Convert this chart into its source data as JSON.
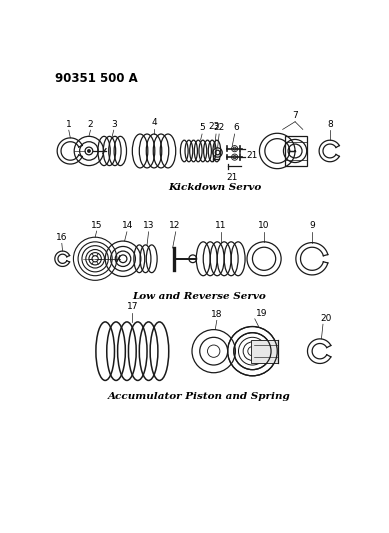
{
  "part_number": "90351 500 A",
  "bg_color": "#ffffff",
  "line_color": "#1a1a1a",
  "section1_label": "Kickdown Servo",
  "section2_label": "Low and Reverse Servo",
  "section3_label": "Accumulator Piston and Spring",
  "part_number_fontsize": 8.5,
  "section_label_fontsize": 7.5,
  "callout_fontsize": 6.5
}
